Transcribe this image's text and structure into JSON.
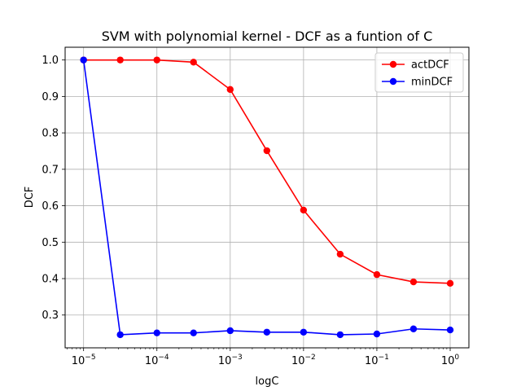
{
  "chart_data": {
    "type": "line",
    "title": "SVM with polynomial kernel - DCF as a funtion of C",
    "xlabel": "logC",
    "ylabel": "DCF",
    "xscale": "log",
    "x": [
      1e-05,
      3.16e-05,
      0.0001,
      0.000316,
      0.001,
      0.00316,
      0.01,
      0.0316,
      0.1,
      0.316,
      1
    ],
    "xlim": [
      5.6e-06,
      1.8
    ],
    "ylim": [
      0.21,
      1.035
    ],
    "xticks": [
      {
        "value": 1e-05,
        "base": "10",
        "exp": "−5"
      },
      {
        "value": 0.0001,
        "base": "10",
        "exp": "−4"
      },
      {
        "value": 0.001,
        "base": "10",
        "exp": "−3"
      },
      {
        "value": 0.01,
        "base": "10",
        "exp": "−2"
      },
      {
        "value": 0.1,
        "base": "10",
        "exp": "−1"
      },
      {
        "value": 1,
        "base": "10",
        "exp": "0"
      }
    ],
    "yticks": [
      {
        "value": 0.3,
        "label": "0.3"
      },
      {
        "value": 0.4,
        "label": "0.4"
      },
      {
        "value": 0.5,
        "label": "0.5"
      },
      {
        "value": 0.6,
        "label": "0.6"
      },
      {
        "value": 0.7,
        "label": "0.7"
      },
      {
        "value": 0.8,
        "label": "0.8"
      },
      {
        "value": 0.9,
        "label": "0.9"
      },
      {
        "value": 1.0,
        "label": "1.0"
      }
    ],
    "grid": true,
    "legend_position": "top-right",
    "series": [
      {
        "name": "actDCF",
        "color": "#ff0000",
        "values": [
          1.0,
          1.0,
          1.0,
          0.994,
          0.919,
          0.751,
          0.588,
          0.467,
          0.411,
          0.391,
          0.387
        ]
      },
      {
        "name": "minDCF",
        "color": "#0000ff",
        "values": [
          1.0,
          0.246,
          0.251,
          0.251,
          0.257,
          0.253,
          0.253,
          0.246,
          0.248,
          0.262,
          0.259
        ]
      }
    ]
  }
}
